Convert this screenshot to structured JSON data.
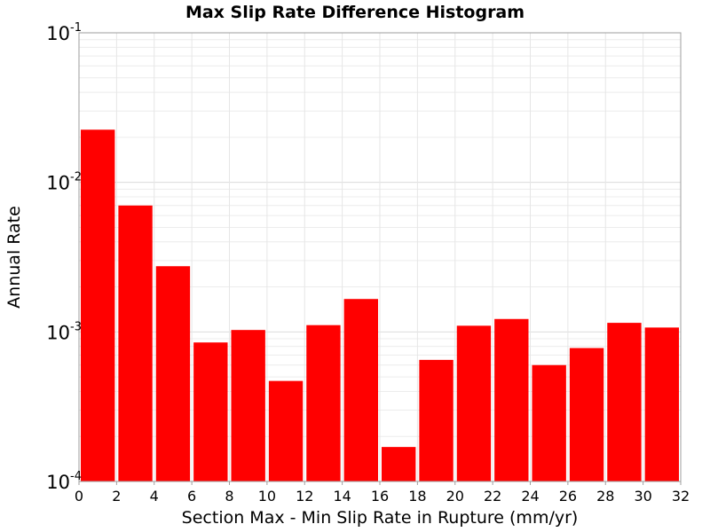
{
  "chart_data": {
    "type": "bar",
    "title": "Max Slip Rate Difference Histogram",
    "xlabel": "Section Max - Min Slip Rate in Rupture (mm/yr)",
    "ylabel": "Annual Rate",
    "y_scale": "log",
    "ylim": [
      0.0001,
      0.1
    ],
    "xlim": [
      0,
      32
    ],
    "grid": true,
    "bar_color": "#ff0000",
    "x_ticks": [
      "0",
      "2",
      "4",
      "6",
      "8",
      "10",
      "12",
      "14",
      "16",
      "18",
      "20",
      "22",
      "24",
      "26",
      "28",
      "30",
      "32"
    ],
    "y_ticks": [
      {
        "base": "10",
        "exp": "-4"
      },
      {
        "base": "10",
        "exp": "-3"
      },
      {
        "base": "10",
        "exp": "-2"
      },
      {
        "base": "10",
        "exp": "-1"
      }
    ],
    "bins": [
      {
        "x_start": 0,
        "x_end": 2,
        "value": 0.0225
      },
      {
        "x_start": 2,
        "x_end": 4,
        "value": 0.007
      },
      {
        "x_start": 4,
        "x_end": 6,
        "value": 0.00275
      },
      {
        "x_start": 6,
        "x_end": 8,
        "value": 0.00085
      },
      {
        "x_start": 8,
        "x_end": 10,
        "value": 0.00103
      },
      {
        "x_start": 10,
        "x_end": 12,
        "value": 0.00047
      },
      {
        "x_start": 12,
        "x_end": 14,
        "value": 0.00111
      },
      {
        "x_start": 14,
        "x_end": 16,
        "value": 0.00166
      },
      {
        "x_start": 16,
        "x_end": 18,
        "value": 0.00017
      },
      {
        "x_start": 18,
        "x_end": 20,
        "value": 0.00065
      },
      {
        "x_start": 20,
        "x_end": 22,
        "value": 0.0011
      },
      {
        "x_start": 22,
        "x_end": 24,
        "value": 0.00122
      },
      {
        "x_start": 24,
        "x_end": 26,
        "value": 0.0006
      },
      {
        "x_start": 26,
        "x_end": 28,
        "value": 0.00078
      },
      {
        "x_start": 28,
        "x_end": 30,
        "value": 0.00115
      },
      {
        "x_start": 30,
        "x_end": 32,
        "value": 0.00107
      }
    ]
  }
}
